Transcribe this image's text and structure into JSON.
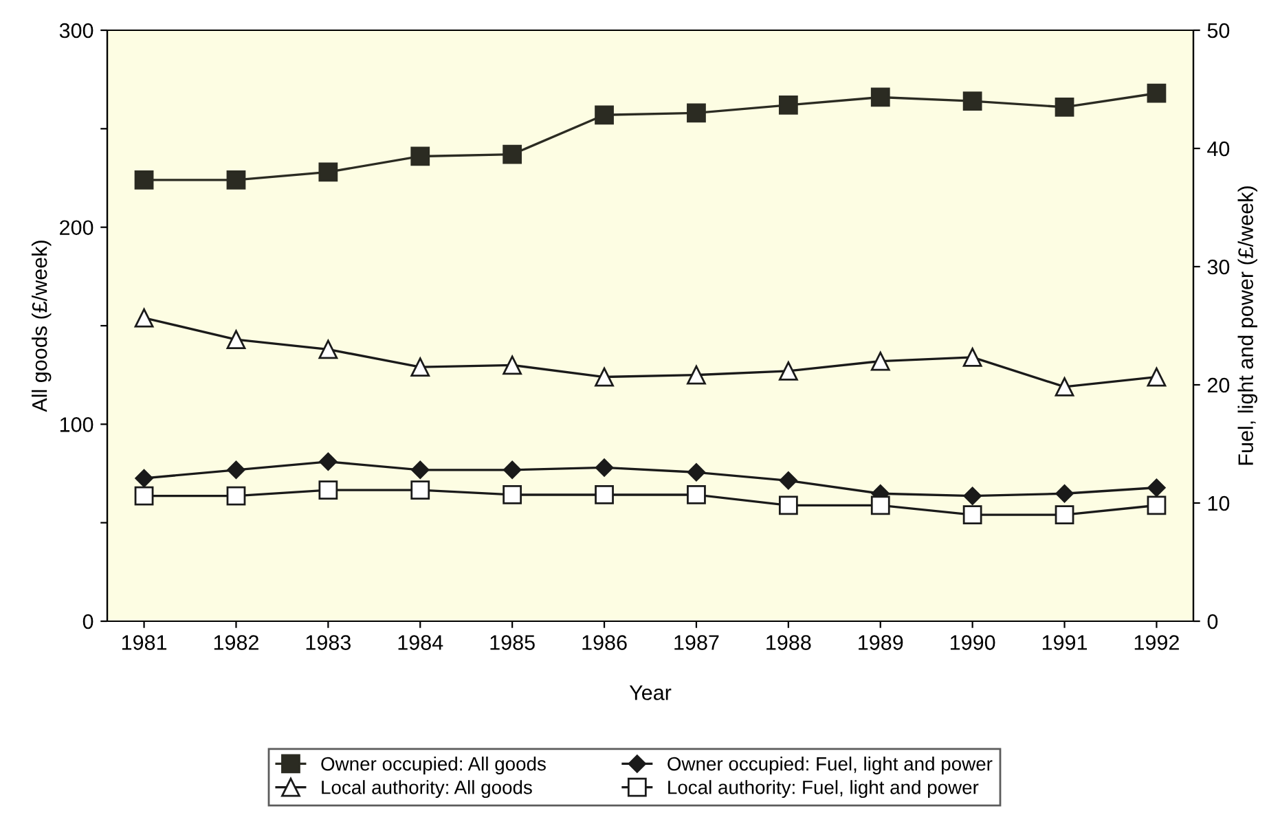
{
  "chart_data": {
    "type": "line",
    "xlabel": "Year",
    "ylabel": "All goods (£/week)",
    "y2label": "Fuel, light and power (£/week)",
    "categories": [
      "1981",
      "1982",
      "1983",
      "1984",
      "1985",
      "1986",
      "1987",
      "1988",
      "1989",
      "1990",
      "1991",
      "1992"
    ],
    "series": [
      {
        "name": "Owner occupied: All goods",
        "color": "#2b2b22",
        "marker": "square",
        "values": [
          224,
          224,
          228,
          236,
          237,
          257,
          258,
          262,
          266,
          264,
          261,
          268
        ]
      },
      {
        "name": "Owner occupied: Fuel, light and power",
        "color": "#1a1a1a",
        "marker": "diamond",
        "axis": "y2",
        "values": [
          12.1,
          12.8,
          13.5,
          12.8,
          12.8,
          13.0,
          12.6,
          11.9,
          10.8,
          10.6,
          10.8,
          11.3
        ]
      },
      {
        "name": "Local authority: All goods",
        "color": "#1a1a1a",
        "marker": "triangle",
        "values": [
          154,
          143,
          138,
          129,
          130,
          124,
          125,
          127,
          132,
          134,
          119,
          124
        ]
      },
      {
        "name": "Local authority: Fuel, light and power",
        "color": "#1a1a1a",
        "marker": "square",
        "axis": "y2",
        "values": [
          10.6,
          10.6,
          11.1,
          11.1,
          10.7,
          10.7,
          10.7,
          9.8,
          9.8,
          9.0,
          9.0,
          9.8
        ]
      }
    ],
    "ylim": [
      0,
      300
    ],
    "yticks": [
      0,
      {
        "value": 50,
        "label": null
      },
      100,
      {
        "value": 150,
        "label": null
      },
      200,
      {
        "value": 250,
        "label": null
      },
      300
    ],
    "y2lim": [
      0,
      50
    ],
    "y2ticks": [
      0,
      10,
      20,
      30,
      40,
      50
    ],
    "grid": false,
    "legend": "bottom",
    "line_style": "solid"
  }
}
